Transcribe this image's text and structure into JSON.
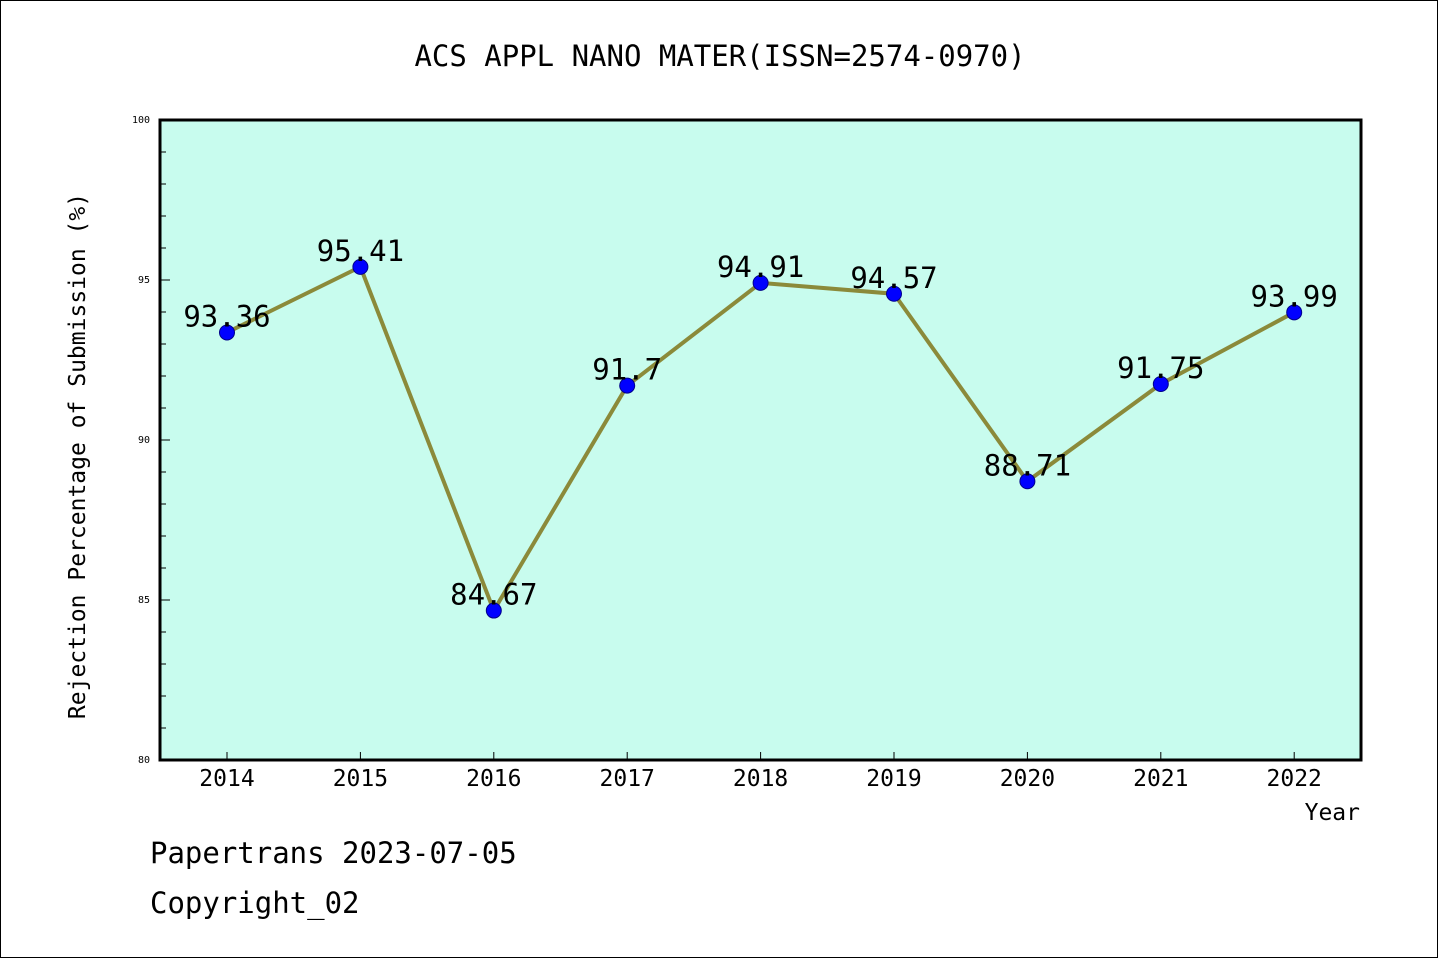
{
  "footer": {
    "line1": "Papertrans 2023-07-05",
    "line2": "Copyright_02"
  },
  "colors": {
    "plot_bg": "#c8fcee",
    "line": "#8b8a3a",
    "marker": "#0000ff",
    "axis": "#000000"
  },
  "chart_data": {
    "type": "line",
    "title": "ACS APPL NANO MATER(ISSN=2574-0970)",
    "xlabel": "Year",
    "ylabel": "Rejection Percentage of Submission (%)",
    "categories": [
      "2014",
      "2015",
      "2016",
      "2017",
      "2018",
      "2019",
      "2020",
      "2021",
      "2022"
    ],
    "values": [
      93.36,
      95.41,
      84.67,
      91.7,
      94.91,
      94.57,
      88.71,
      91.75,
      93.99
    ],
    "data_labels": [
      "93.36",
      "95.41",
      "84.67",
      "91.7",
      "94.91",
      "94.57",
      "88.71",
      "91.75",
      "93.99"
    ],
    "y_ticks": [
      "80",
      "85",
      "90",
      "95",
      "100"
    ],
    "ylim": [
      80,
      100
    ],
    "grid": false,
    "legend": "none"
  }
}
